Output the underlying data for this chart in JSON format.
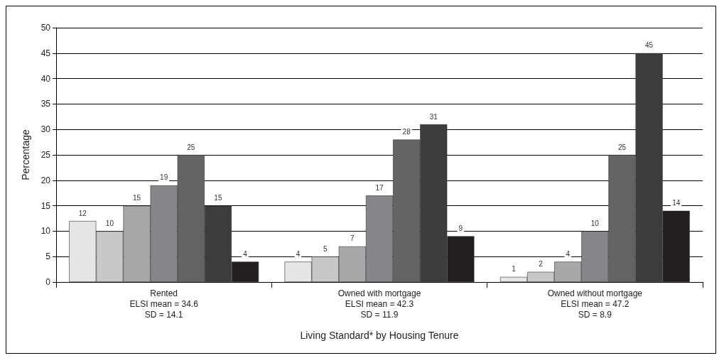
{
  "chart_data": {
    "type": "bar",
    "xlabel": "Living Standard* by Housing Tenure",
    "ylabel": "Percentage",
    "categories": [
      "Rented\nELSI mean = 34.6\nSD = 14.1",
      "Owned with mortgage\nELSI mean = 42.3\nSD = 11.9",
      "Owned without mortgage\nELSI mean = 47.2\nSD = 8.9"
    ],
    "series": [
      {
        "color": "#e6e6e6",
        "values": [
          12,
          4,
          1
        ]
      },
      {
        "color": "#c8c8c8",
        "values": [
          10,
          5,
          2
        ]
      },
      {
        "color": "#a8a8a8",
        "values": [
          15,
          7,
          4
        ]
      },
      {
        "color": "#86868a",
        "values": [
          19,
          17,
          10
        ]
      },
      {
        "color": "#646464",
        "values": [
          25,
          28,
          25
        ]
      },
      {
        "color": "#3c3c3c",
        "values": [
          15,
          31,
          45
        ]
      },
      {
        "color": "#231f20",
        "values": [
          4,
          9,
          14
        ]
      }
    ],
    "ylim": [
      0,
      50
    ],
    "yticks": [
      0,
      5,
      10,
      15,
      20,
      25,
      30,
      35,
      40,
      45,
      50
    ],
    "grid": "y",
    "data_labels": true
  }
}
